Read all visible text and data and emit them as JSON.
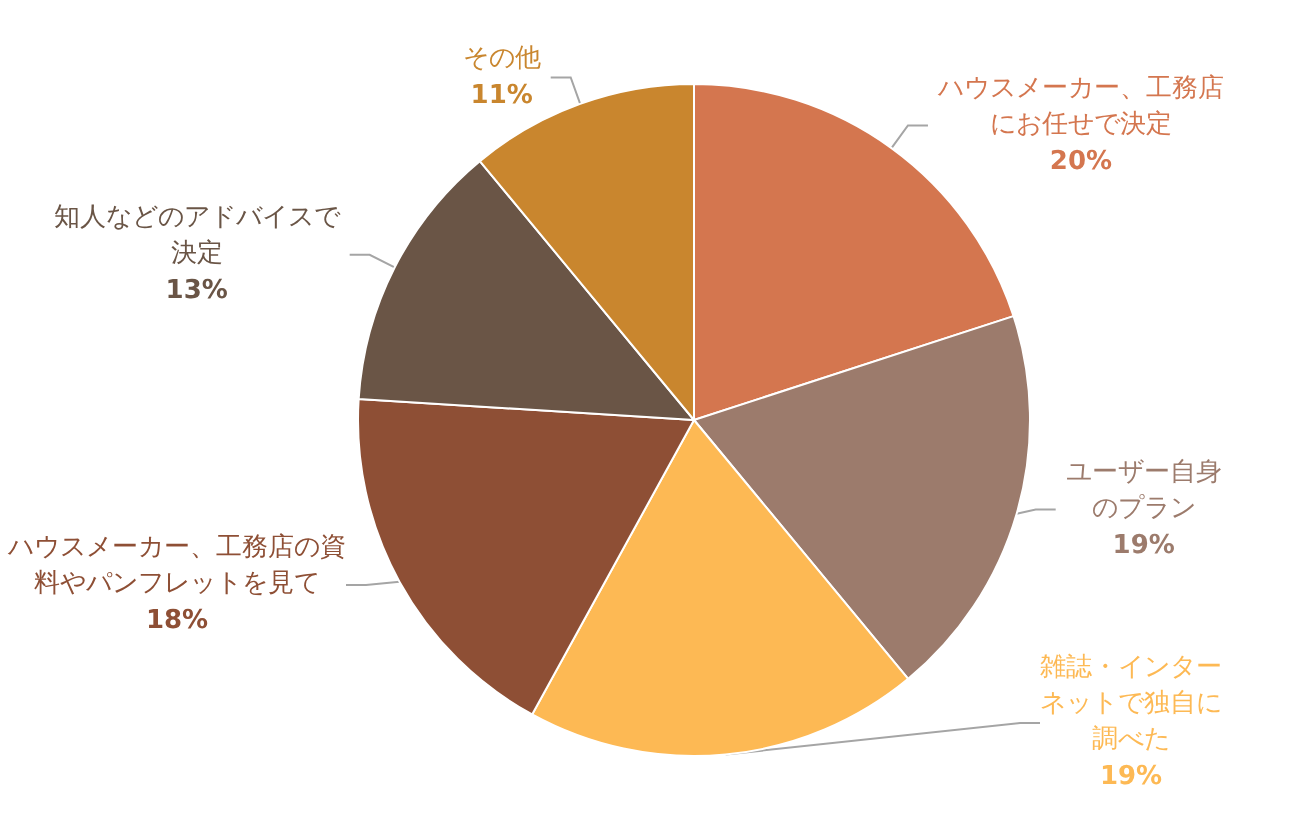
{
  "chart_data": {
    "type": "pie",
    "categories": [
      "ハウスメーカー、工務店にお任せで決定",
      "ユーザー自身のプラン",
      "雑誌・インターネットで独自に調べた",
      "ハウスメーカー、工務店の資料やパンフレットを見て",
      "知人などのアドバイスで決定",
      "その他"
    ],
    "values": [
      20,
      19,
      19,
      18,
      13,
      11
    ],
    "colors": [
      "#d4764f",
      "#9c7b6c",
      "#fdb954",
      "#8e4f35",
      "#6a5546",
      "#c9862e"
    ],
    "value_labels": [
      "20%",
      "19%",
      "19%",
      "18%",
      "13%",
      "11%"
    ],
    "legend": false
  }
}
